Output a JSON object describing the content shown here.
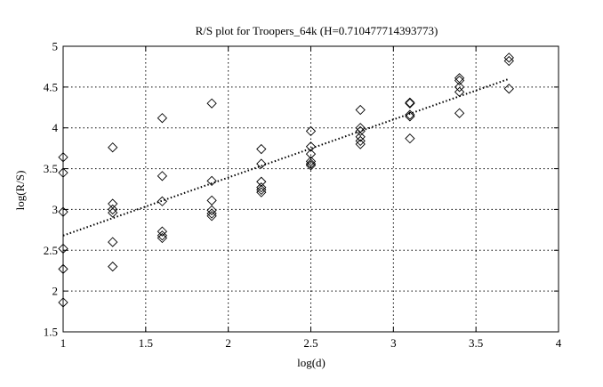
{
  "chart_data": {
    "type": "scatter",
    "title": "R/S plot for Troopers_64k (H=0.710477714393773)",
    "xlabel": "log(d)",
    "ylabel": "log(R/S)",
    "xlim": [
      1,
      4
    ],
    "ylim": [
      1.5,
      5
    ],
    "xticks": [
      1,
      1.5,
      2,
      2.5,
      3,
      3.5,
      4
    ],
    "xtick_labels": [
      "1",
      "1.5",
      "2",
      "2.5",
      "3",
      "3.5",
      "4"
    ],
    "yticks": [
      1.5,
      2,
      2.5,
      3,
      3.5,
      4,
      4.5,
      5
    ],
    "ytick_labels": [
      "1.5",
      "2",
      "2.5",
      "3",
      "3.5",
      "4",
      "4.5",
      "5"
    ],
    "grid": true,
    "marker": "diamond",
    "points": [
      [
        1.0,
        3.64
      ],
      [
        1.0,
        3.45
      ],
      [
        1.0,
        2.97
      ],
      [
        1.0,
        2.52
      ],
      [
        1.0,
        2.27
      ],
      [
        1.0,
        1.86
      ],
      [
        1.3,
        3.76
      ],
      [
        1.3,
        3.07
      ],
      [
        1.3,
        3.0
      ],
      [
        1.3,
        2.96
      ],
      [
        1.3,
        2.6
      ],
      [
        1.3,
        2.3
      ],
      [
        1.6,
        4.12
      ],
      [
        1.6,
        3.41
      ],
      [
        1.6,
        3.1
      ],
      [
        1.6,
        2.73
      ],
      [
        1.6,
        2.68
      ],
      [
        1.6,
        2.65
      ],
      [
        1.9,
        4.3
      ],
      [
        1.9,
        3.35
      ],
      [
        1.9,
        3.11
      ],
      [
        1.9,
        2.99
      ],
      [
        1.9,
        2.95
      ],
      [
        1.9,
        2.92
      ],
      [
        2.2,
        3.74
      ],
      [
        2.2,
        3.56
      ],
      [
        2.2,
        3.34
      ],
      [
        2.2,
        3.27
      ],
      [
        2.2,
        3.24
      ],
      [
        2.2,
        3.21
      ],
      [
        2.5,
        3.96
      ],
      [
        2.5,
        3.77
      ],
      [
        2.5,
        3.68
      ],
      [
        2.5,
        3.59
      ],
      [
        2.5,
        3.56
      ],
      [
        2.5,
        3.54
      ],
      [
        2.8,
        4.22
      ],
      [
        2.8,
        4.0
      ],
      [
        2.8,
        3.96
      ],
      [
        2.8,
        3.89
      ],
      [
        2.8,
        3.84
      ],
      [
        2.8,
        3.8
      ],
      [
        3.1,
        4.31
      ],
      [
        3.1,
        4.3
      ],
      [
        3.1,
        4.16
      ],
      [
        3.1,
        4.14
      ],
      [
        3.1,
        3.87
      ],
      [
        3.4,
        4.61
      ],
      [
        3.4,
        4.58
      ],
      [
        3.4,
        4.5
      ],
      [
        3.4,
        4.44
      ],
      [
        3.4,
        4.18
      ],
      [
        3.7,
        4.86
      ],
      [
        3.7,
        4.82
      ],
      [
        3.7,
        4.48
      ]
    ],
    "fit_line": {
      "style": "dotted",
      "x": [
        1.0,
        3.7
      ],
      "y": [
        2.68,
        4.6
      ]
    }
  }
}
